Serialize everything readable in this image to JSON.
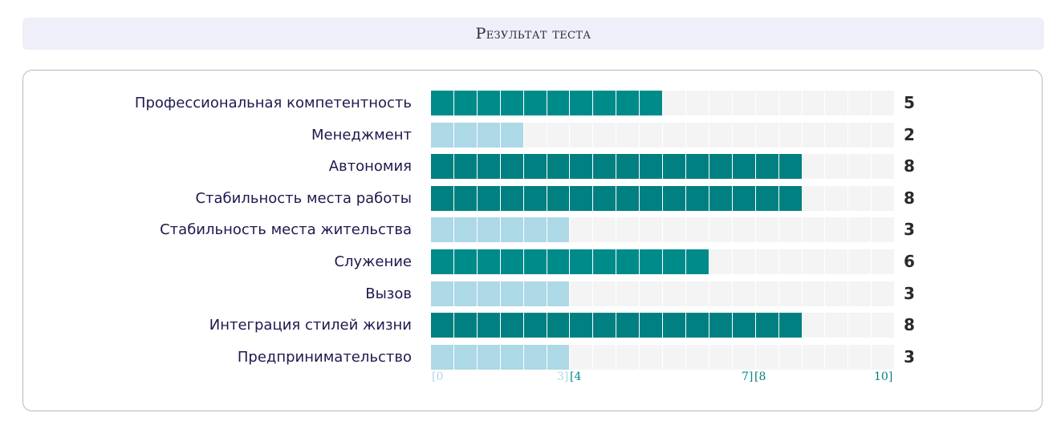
{
  "header": {
    "title": "Результат теста"
  },
  "max_score": 10,
  "colors": {
    "low": "#add8e6",
    "mid": "#008b8b",
    "high": "#008080",
    "empty": "#f4f4f4",
    "header_bg": "#eeeff8",
    "label_text": "#1d1a4d"
  },
  "results": [
    {
      "label": "Профессиональная компетентность",
      "value": "5",
      "score": 5,
      "level": "mid"
    },
    {
      "label": "Менеджмент",
      "value": "2",
      "score": 2,
      "level": "low"
    },
    {
      "label": "Автономия",
      "value": "8",
      "score": 8,
      "level": "high"
    },
    {
      "label": "Стабильность места работы",
      "value": "8",
      "score": 8,
      "level": "high"
    },
    {
      "label": "Стабильность места жительства",
      "value": "3",
      "score": 3,
      "level": "low"
    },
    {
      "label": "Служение",
      "value": "6",
      "score": 6,
      "level": "mid"
    },
    {
      "label": "Вызов",
      "value": "3",
      "score": 3,
      "level": "low"
    },
    {
      "label": "Интеграция стилей жизни",
      "value": "8",
      "score": 8,
      "level": "high"
    },
    {
      "label": "Предпринимательство",
      "value": "3",
      "score": 3,
      "level": "low"
    }
  ],
  "scale": {
    "low_start": "[0",
    "low_end": "3]",
    "mid_start": "[4",
    "mid_end": "7]",
    "high_start": "[8",
    "high_end": "10]"
  }
}
